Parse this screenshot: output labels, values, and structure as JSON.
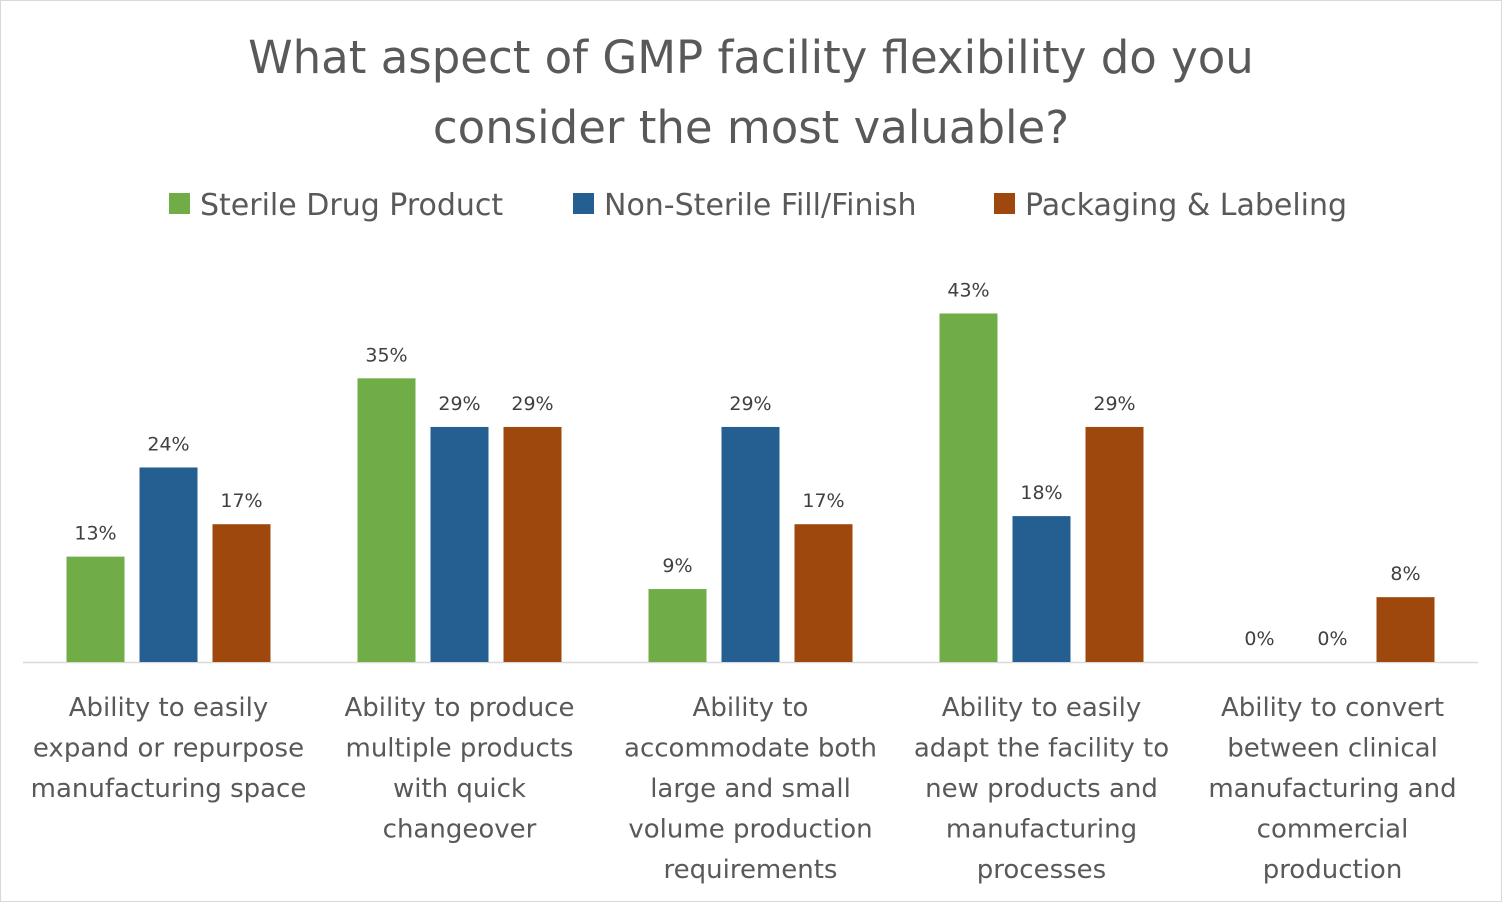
{
  "chart_data": {
    "type": "bar",
    "title_lines": [
      "What aspect of GMP facility flexibility do you",
      "consider the most valuable?"
    ],
    "categories": [
      [
        "Ability to easily",
        "expand or repurpose",
        "manufacturing space"
      ],
      [
        "Ability to produce",
        "multiple products",
        "with quick",
        "changeover"
      ],
      [
        "Ability to",
        "accommodate both",
        "large and small",
        "volume production",
        "requirements"
      ],
      [
        "Ability to easily",
        "adapt the facility to",
        "new products and",
        "manufacturing",
        "processes"
      ],
      [
        "Ability to convert",
        "between clinical",
        "manufacturing and",
        "commercial",
        "production"
      ]
    ],
    "series": [
      {
        "name": "Sterile Drug Product",
        "color": "#70ad47",
        "values": [
          13,
          35,
          9,
          43,
          0
        ],
        "labels": [
          "13%",
          "35%",
          "9%",
          "43%",
          "0%"
        ]
      },
      {
        "name": "Non-Sterile Fill/Finish",
        "color": "#255e91",
        "values": [
          24,
          29,
          29,
          18,
          0
        ],
        "labels": [
          "24%",
          "29%",
          "29%",
          "18%",
          "0%"
        ]
      },
      {
        "name": "Packaging & Labeling",
        "color": "#9e480e",
        "values": [
          17,
          29,
          17,
          29,
          8
        ],
        "labels": [
          "17%",
          "29%",
          "17%",
          "29%",
          "8%"
        ]
      }
    ],
    "ylim": [
      0,
      43.8
    ],
    "grid": false,
    "legend_position": "top"
  }
}
